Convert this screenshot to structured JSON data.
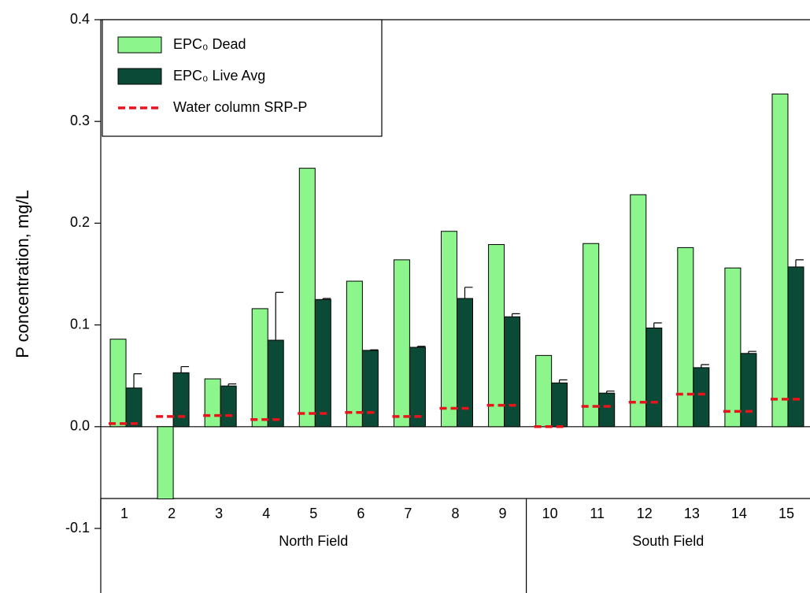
{
  "chart_data": {
    "type": "bar",
    "y_label": "P concentration, mg/L",
    "groups": [
      {
        "label": "North Field",
        "categories": [
          "1",
          "2",
          "3",
          "4",
          "5",
          "6",
          "7",
          "8",
          "9"
        ]
      },
      {
        "label": "South Field",
        "categories": [
          "10",
          "11",
          "12",
          "13",
          "14",
          "15"
        ]
      }
    ],
    "series": [
      {
        "name": "EPC₀ Dead",
        "kind": "bar",
        "color": "#8cf58c",
        "values": [
          0.086,
          -0.071,
          0.047,
          0.116,
          0.254,
          0.143,
          0.164,
          0.192,
          0.179,
          0.07,
          0.18,
          0.228,
          0.176,
          0.156,
          0.327
        ]
      },
      {
        "name": "EPC₀ Live Avg",
        "kind": "bar",
        "color": "#0b4a36",
        "values": [
          0.038,
          0.053,
          0.04,
          0.085,
          0.125,
          0.075,
          0.078,
          0.126,
          0.108,
          0.043,
          0.033,
          0.097,
          0.058,
          0.072,
          0.157
        ],
        "errors": [
          0.014,
          0.006,
          0.002,
          0.047,
          0.001,
          0.0005,
          0.001,
          0.011,
          0.003,
          0.003,
          0.002,
          0.005,
          0.003,
          0.002,
          0.007
        ]
      },
      {
        "name": "Water column SRP-P",
        "kind": "dash",
        "color": "#e8141c",
        "values": [
          0.003,
          0.01,
          0.011,
          0.007,
          0.013,
          0.014,
          0.01,
          0.018,
          0.021,
          0.0,
          0.02,
          0.024,
          0.032,
          0.015,
          0.027
        ]
      }
    ],
    "ylim": [
      -0.1,
      0.4
    ],
    "yticks": [
      -0.1,
      {
        "value": 0,
        "label": "0.0"
      },
      0.1,
      0.2,
      0.3,
      0.4
    ]
  }
}
